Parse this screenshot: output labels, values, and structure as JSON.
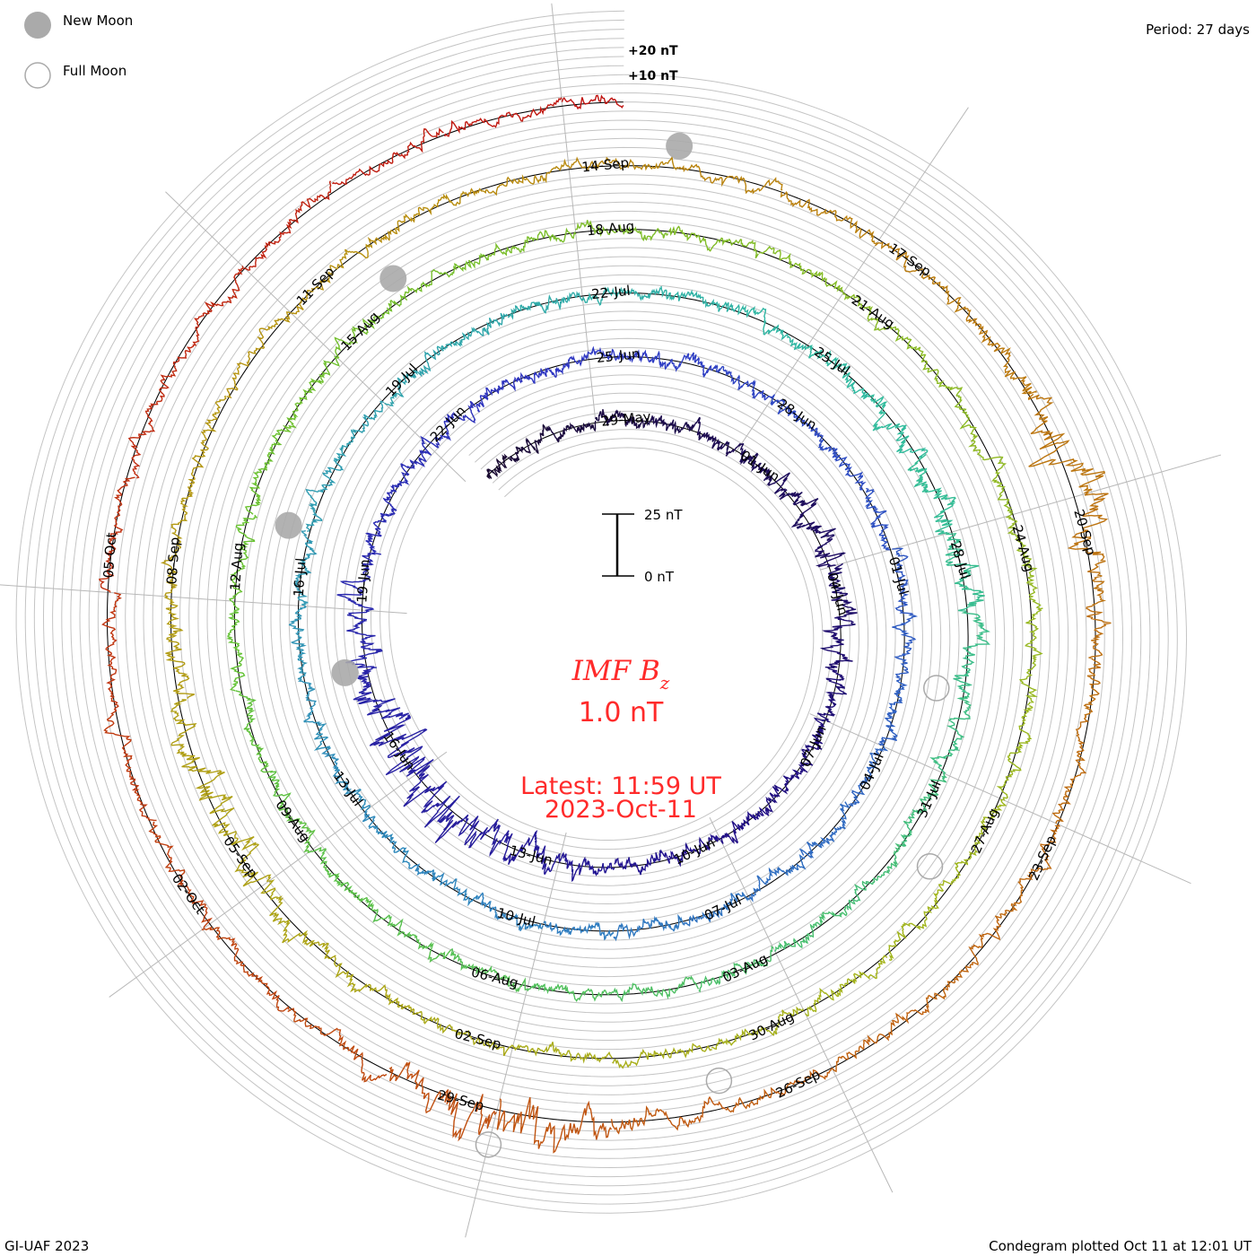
{
  "chart_data": {
    "type": "line",
    "subtype": "spiral condegram",
    "title": "IMF Bz",
    "title_main": "IMF B",
    "title_sub": "z",
    "current_value": "1.0 nT",
    "latest_time": "Latest: 11:59 UT",
    "latest_date": "2023-Oct-11",
    "period": "Period: 27 days",
    "period_days": 27,
    "start_date": "2023-05-29",
    "data_range_days": [
      -2.6,
      135.5
    ],
    "scale_bar": {
      "top_label": "25 nT",
      "bottom_label": "0 nT",
      "nT": 25
    },
    "ring_labels": [
      "+20 nT",
      "+10 nT"
    ],
    "date_labels": [
      "29-May",
      "01-Jun",
      "04-Jun",
      "07-Jun",
      "10-Jun",
      "13-Jun",
      "16-Jun",
      "19-Jun",
      "22-Jun",
      "25-Jun",
      "28-Jun",
      "01-Jul",
      "04-Jul",
      "07-Jul",
      "10-Jul",
      "13-Jul",
      "16-Jul",
      "19-Jul",
      "22-Jul",
      "25-Jul",
      "28-Jul",
      "31-Jul",
      "03-Aug",
      "06-Aug",
      "09-Aug",
      "12-Aug",
      "15-Aug",
      "18-Aug",
      "21-Aug",
      "24-Aug",
      "27-Aug",
      "30-Aug",
      "02-Sep",
      "05-Sep",
      "08-Sep",
      "11-Sep",
      "14-Sep",
      "17-Sep",
      "20-Sep",
      "23-Sep",
      "26-Sep",
      "29-Sep",
      "02-Oct",
      "05-Oct"
    ],
    "date_label_step_days": 3,
    "new_moons": [
      "2023-06-18",
      "2023-07-17",
      "2023-08-16",
      "2023-09-15"
    ],
    "full_moons": [
      "2023-07-03",
      "2023-08-01",
      "2023-08-31",
      "2023-09-29"
    ],
    "color_stops": [
      {
        "day": -3,
        "color": "#1a0a30"
      },
      {
        "day": 12,
        "color": "#22108a"
      },
      {
        "day": 27,
        "color": "#2f38c4"
      },
      {
        "day": 42,
        "color": "#2f7fc0"
      },
      {
        "day": 58,
        "color": "#30bca0"
      },
      {
        "day": 75,
        "color": "#66c232"
      },
      {
        "day": 92,
        "color": "#a4b51c"
      },
      {
        "day": 106,
        "color": "#b89010"
      },
      {
        "day": 120,
        "color": "#c06010"
      },
      {
        "day": 136,
        "color": "#c01010"
      }
    ]
  },
  "legend": {
    "new_moon": "New Moon",
    "full_moon": "Full Moon",
    "moon_fill": "#aaaaaa"
  },
  "footer": {
    "left": "GI-UAF 2023",
    "right": "Condegram plotted Oct 11 at 12:01 UT"
  }
}
